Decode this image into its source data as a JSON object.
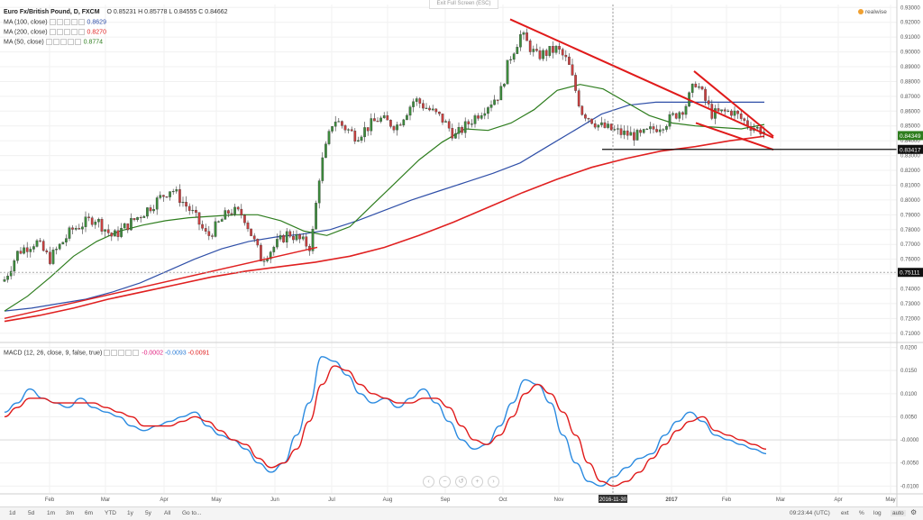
{
  "header": {
    "symbol": "Euro Fx/British Pound, D, FXCM",
    "ohlc": "O 0.85231  H 0.85778  L 0.84555  C 0.84662",
    "exit_fullscreen": "Exit Full Screen (ESC)",
    "watermark": "realwise"
  },
  "indicators": [
    {
      "label": "MA (100, close)",
      "value": "0.8629",
      "color": "#2f4fa8"
    },
    {
      "label": "MA (200, close)",
      "value": "0.8270",
      "color": "#e02020"
    },
    {
      "label": "MA (50, close)",
      "value": "0.8774",
      "color": "#2e7d1e"
    }
  ],
  "macd_legend": {
    "label": "MACD (12, 26, close, 9, false, true)",
    "v1": "-0.0002",
    "v2": "-0.0093",
    "v3": "-0.0091",
    "c1": "#e0207f",
    "c2": "#2f7fd8",
    "c3": "#e02020"
  },
  "colors": {
    "up": "#3c8a3c",
    "down": "#c84040",
    "ma50": "#2e7d1e",
    "ma100": "#2f4fa8",
    "ma200": "#e02020",
    "trend": "#e01a1a",
    "macd": "#2a8ae0",
    "signal": "#e01a1a"
  },
  "chart_data": [
    {
      "type": "candlestick",
      "title": "Euro Fx/British Pound, D, FXCM",
      "x_ticks": [
        "Feb",
        "Mar",
        "Apr",
        "May",
        "Jun",
        "Jul",
        "Aug",
        "Sep",
        "Oct",
        "Nov",
        "2016-11-30",
        "2017",
        "Feb",
        "Mar",
        "Apr",
        "May"
      ],
      "y_ticks": [
        "0.93000",
        "0.92000",
        "0.91000",
        "0.90000",
        "0.89000",
        "0.88000",
        "0.87000",
        "0.86000",
        "0.85000",
        "0.84000",
        "0.83000",
        "0.82000",
        "0.81000",
        "0.80000",
        "0.79000",
        "0.78000",
        "0.77000",
        "0.76000",
        "0.75000",
        "0.74000",
        "0.73000",
        "0.72000",
        "0.71000"
      ],
      "ylim": [
        0.705,
        0.932
      ],
      "price_labels": [
        {
          "text": "0.84349",
          "value": 0.84349,
          "color": "#2e7d1e"
        },
        {
          "text": "0.83417",
          "value": 0.83417,
          "color": "#111111"
        },
        {
          "text": "0.75111",
          "value": 0.75111,
          "color": "#111111"
        }
      ],
      "series": [
        {
          "name": "MA (50, close)",
          "values": [
            0.725,
            0.735,
            0.748,
            0.762,
            0.772,
            0.779,
            0.783,
            0.786,
            0.788,
            0.789,
            0.79,
            0.79,
            0.786,
            0.779,
            0.776,
            0.782,
            0.797,
            0.812,
            0.827,
            0.839,
            0.848,
            0.847,
            0.852,
            0.861,
            0.874,
            0.878,
            0.875,
            0.866,
            0.857,
            0.852,
            0.85,
            0.849,
            0.848,
            0.851
          ]
        },
        {
          "name": "MA (100, close)",
          "values": [
            0.725,
            0.727,
            0.73,
            0.733,
            0.738,
            0.744,
            0.752,
            0.76,
            0.767,
            0.772,
            0.775,
            0.777,
            0.78,
            0.786,
            0.793,
            0.8,
            0.806,
            0.812,
            0.818,
            0.825,
            0.836,
            0.847,
            0.858,
            0.864,
            0.866,
            0.866,
            0.866,
            0.866,
            0.866
          ]
        },
        {
          "name": "MA (200, close)",
          "values": [
            0.718,
            0.722,
            0.727,
            0.733,
            0.738,
            0.743,
            0.748,
            0.752,
            0.755,
            0.758,
            0.762,
            0.768,
            0.776,
            0.785,
            0.795,
            0.805,
            0.814,
            0.822,
            0.828,
            0.833,
            0.836,
            0.84,
            0.843
          ]
        }
      ]
    },
    {
      "type": "line",
      "title": "MACD (12, 26, close, 9, false, true)",
      "y_ticks": [
        "0.0200",
        "0.0150",
        "0.0100",
        "0.0050",
        "-0.0000",
        "-0.0050",
        "-0.0100"
      ],
      "ylim": [
        -0.0115,
        0.0205
      ],
      "series": [
        {
          "name": "MACD",
          "values": [
            0.006,
            0.008,
            0.011,
            0.009,
            0.008,
            0.007,
            0.009,
            0.007,
            0.006,
            0.005,
            0.003,
            0.002,
            0.003,
            0.004,
            0.005,
            0.006,
            0.003,
            0.001,
            0.0,
            -0.002,
            -0.005,
            -0.007,
            -0.005,
            0.001,
            0.008,
            0.018,
            0.017,
            0.014,
            0.01,
            0.008,
            0.009,
            0.007,
            0.009,
            0.011,
            0.008,
            0.004,
            0.0,
            -0.002,
            -0.001,
            0.003,
            0.008,
            0.013,
            0.012,
            0.008,
            0.001,
            -0.005,
            -0.009,
            -0.01,
            -0.008,
            -0.006,
            -0.004,
            -0.003,
            0.001,
            0.004,
            0.006,
            0.004,
            0.001,
            0.0,
            -0.001,
            -0.002,
            -0.003
          ]
        },
        {
          "name": "Signal",
          "values": [
            0.005,
            0.007,
            0.009,
            0.009,
            0.008,
            0.008,
            0.008,
            0.008,
            0.007,
            0.006,
            0.005,
            0.003,
            0.003,
            0.003,
            0.004,
            0.005,
            0.004,
            0.002,
            0.0,
            -0.001,
            -0.004,
            -0.006,
            -0.005,
            -0.002,
            0.004,
            0.012,
            0.016,
            0.015,
            0.012,
            0.01,
            0.009,
            0.008,
            0.008,
            0.009,
            0.009,
            0.007,
            0.003,
            0.0,
            -0.001,
            0.001,
            0.005,
            0.01,
            0.012,
            0.01,
            0.006,
            0.001,
            -0.005,
            -0.009,
            -0.01,
            -0.009,
            -0.007,
            -0.004,
            -0.001,
            0.002,
            0.004,
            0.005,
            0.002,
            0.001,
            0.0,
            -0.001,
            -0.002
          ]
        }
      ]
    }
  ],
  "toolbar": {
    "ranges": [
      "1d",
      "5d",
      "1m",
      "3m",
      "6m",
      "YTD",
      "1y",
      "5y",
      "All",
      "Go to..."
    ],
    "time": "09:23:44 (UTC)",
    "ext": "ext",
    "pct": "%",
    "log": "log",
    "auto": "auto"
  }
}
